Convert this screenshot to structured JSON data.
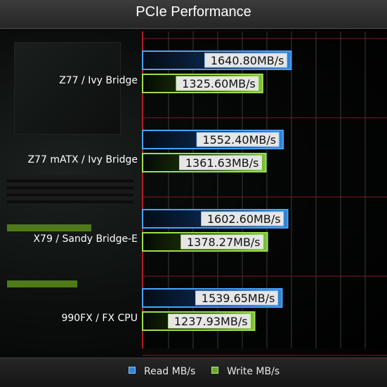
{
  "chart_data": {
    "type": "bar",
    "orientation": "horizontal",
    "title": "PCIe Performance",
    "categories": [
      "Z77 / Ivy Bridge",
      "Z77 mATX / Ivy Bridge",
      "X79 / Sandy Bridge-E",
      "990FX / FX CPU"
    ],
    "series": [
      {
        "name": "Read MB/s",
        "values": [
          1640.8,
          1552.4,
          1602.6,
          1539.65
        ],
        "labels": [
          "1640.80MB/s",
          "1552.40MB/s",
          "1602.60MB/s",
          "1539.65MB/s"
        ],
        "color": "#2f86d6"
      },
      {
        "name": "Write MB/s",
        "values": [
          1325.6,
          1361.63,
          1378.27,
          1237.93
        ],
        "labels": [
          "1325.60MB/s",
          "1361.63MB/s",
          "1378.27MB/s",
          "1237.93MB/s"
        ],
        "color": "#7fc23a"
      }
    ],
    "xlim": [
      0,
      2700
    ],
    "grid": true,
    "legend_position": "bottom"
  }
}
